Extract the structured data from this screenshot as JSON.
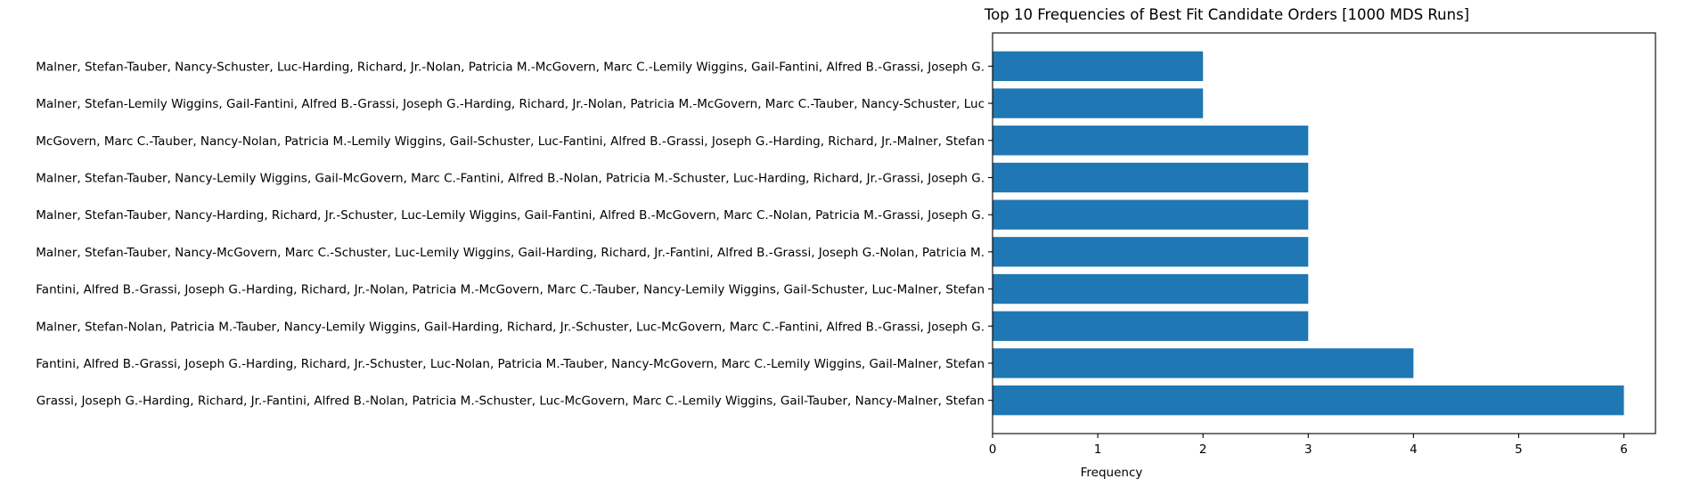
{
  "chart_data": {
    "type": "bar",
    "orientation": "horizontal",
    "title": "Top 10 Frequencies of Best Fit Candidate Orders [1000 MDS Runs]",
    "xlabel": "Frequency",
    "ylabel": "",
    "xlim": [
      0,
      6.3
    ],
    "xticks": [
      0,
      1,
      2,
      3,
      4,
      5,
      6
    ],
    "grid": false,
    "bar_color": "#1f77b4",
    "categories": [
      "Grassi, Joseph G.-Harding, Richard, Jr.-Fantini, Alfred B.-Nolan, Patricia M.-Schuster, Luc-McGovern, Marc C.-Lemily Wiggins, Gail-Tauber, Nancy-Malner, Stefan",
      "Fantini, Alfred B.-Grassi, Joseph G.-Harding, Richard, Jr.-Schuster, Luc-Nolan, Patricia M.-Tauber, Nancy-McGovern, Marc C.-Lemily Wiggins, Gail-Malner, Stefan",
      "Malner, Stefan-Nolan, Patricia M.-Tauber, Nancy-Lemily Wiggins, Gail-Harding, Richard, Jr.-Schuster, Luc-McGovern, Marc C.-Fantini, Alfred B.-Grassi, Joseph G.",
      "Fantini, Alfred B.-Grassi, Joseph G.-Harding, Richard, Jr.-Nolan, Patricia M.-McGovern, Marc C.-Tauber, Nancy-Lemily Wiggins, Gail-Schuster, Luc-Malner, Stefan",
      "Malner, Stefan-Tauber, Nancy-McGovern, Marc C.-Schuster, Luc-Lemily Wiggins, Gail-Harding, Richard, Jr.-Fantini, Alfred B.-Grassi, Joseph G.-Nolan, Patricia M.",
      "Malner, Stefan-Tauber, Nancy-Harding, Richard, Jr.-Schuster, Luc-Lemily Wiggins, Gail-Fantini, Alfred B.-McGovern, Marc C.-Nolan, Patricia M.-Grassi, Joseph G.",
      "Malner, Stefan-Tauber, Nancy-Lemily Wiggins, Gail-McGovern, Marc C.-Fantini, Alfred B.-Nolan, Patricia M.-Schuster, Luc-Harding, Richard, Jr.-Grassi, Joseph G.",
      "McGovern, Marc C.-Tauber, Nancy-Nolan, Patricia M.-Lemily Wiggins, Gail-Schuster, Luc-Fantini, Alfred B.-Grassi, Joseph G.-Harding, Richard, Jr.-Malner, Stefan",
      "Malner, Stefan-Lemily Wiggins, Gail-Fantini, Alfred B.-Grassi, Joseph G.-Harding, Richard, Jr.-Nolan, Patricia M.-McGovern, Marc C.-Tauber, Nancy-Schuster, Luc",
      "Malner, Stefan-Tauber, Nancy-Schuster, Luc-Harding, Richard, Jr.-Nolan, Patricia M.-McGovern, Marc C.-Lemily Wiggins, Gail-Fantini, Alfred B.-Grassi, Joseph G."
    ],
    "values": [
      6,
      4,
      3,
      3,
      3,
      3,
      3,
      3,
      2,
      2
    ]
  }
}
